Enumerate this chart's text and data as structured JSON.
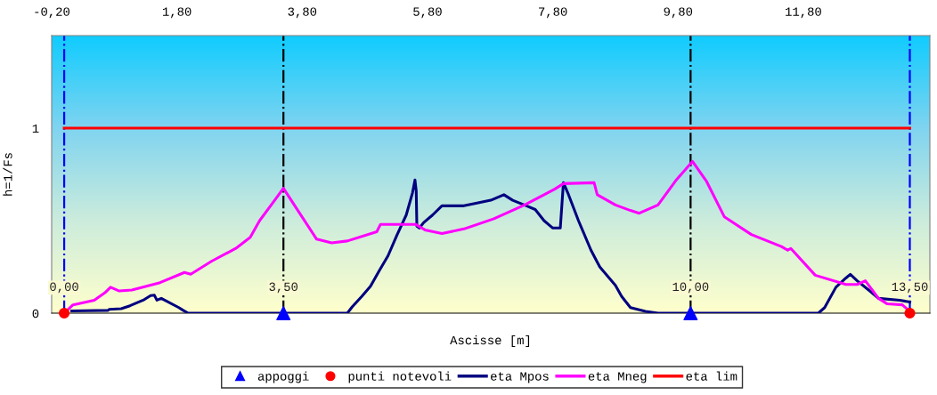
{
  "chart_data": {
    "type": "line",
    "xlabel": "Ascisse [m]",
    "ylabel": "h=1/Fs",
    "xlim": [
      -0.2,
      13.82
    ],
    "ylim": [
      0,
      1.5
    ],
    "xticks": [
      {
        "value": -0.2,
        "label": "-0,20"
      },
      {
        "value": 1.8,
        "label": "1,80"
      },
      {
        "value": 3.8,
        "label": "3,80"
      },
      {
        "value": 5.8,
        "label": "5,80"
      },
      {
        "value": 7.8,
        "label": "7,80"
      },
      {
        "value": 9.8,
        "label": "9,80"
      },
      {
        "value": 11.8,
        "label": "11,80"
      }
    ],
    "yticks": [
      0,
      1
    ],
    "grid": false,
    "legend": "bottom",
    "series": [
      {
        "name": "appoggi",
        "type": "scatter",
        "marker": "triangle",
        "color": "#0000ff",
        "x": [
          3.5,
          10.0
        ],
        "values": [
          0,
          0
        ]
      },
      {
        "name": "punti notevoli",
        "type": "scatter",
        "marker": "circle",
        "color": "#ff0000",
        "x": [
          0,
          13.5
        ],
        "values": [
          0,
          0
        ]
      },
      {
        "name": "eta Mpos",
        "type": "line",
        "marker": "none",
        "color": "#000080",
        "x": [
          0.12,
          0.7,
          0.72,
          0.91,
          1.05,
          1.26,
          1.38,
          1.44,
          1.48,
          1.55,
          1.83,
          1.9,
          1.98,
          4.52,
          4.6,
          4.75,
          4.89,
          5.03,
          5.17,
          5.31,
          5.46,
          5.56,
          5.6,
          5.62,
          5.63,
          5.67,
          5.74,
          5.88,
          6.03,
          6.38,
          6.59,
          6.81,
          7.02,
          7.16,
          7.38,
          7.52,
          7.66,
          7.8,
          7.92,
          7.97,
          8.04,
          8.21,
          8.41,
          8.55,
          8.8,
          8.9,
          9.04,
          9.28,
          9.48,
          12.04,
          12.14,
          12.32,
          12.48,
          12.55,
          12.66,
          12.86,
          13.0,
          13.34,
          13.5
        ],
        "values": [
          0.012,
          0.015,
          0.02,
          0.024,
          0.04,
          0.07,
          0.095,
          0.097,
          0.07,
          0.08,
          0.03,
          0.015,
          0,
          0,
          0.035,
          0.09,
          0.145,
          0.23,
          0.31,
          0.42,
          0.53,
          0.65,
          0.72,
          0.66,
          0.47,
          0.46,
          0.49,
          0.53,
          0.58,
          0.58,
          0.595,
          0.61,
          0.64,
          0.61,
          0.58,
          0.56,
          0.5,
          0.46,
          0.46,
          0.705,
          0.65,
          0.5,
          0.34,
          0.25,
          0.15,
          0.09,
          0.03,
          0.01,
          0,
          0,
          0.03,
          0.14,
          0.19,
          0.21,
          0.175,
          0.12,
          0.08,
          0.07,
          0.06
        ]
      },
      {
        "name": "eta Mneg",
        "type": "line",
        "marker": "none",
        "color": "#ff00ff",
        "x": [
          0,
          0.14,
          0.48,
          0.65,
          0.74,
          0.88,
          1.08,
          1.53,
          1.92,
          2.02,
          2.35,
          2.74,
          2.97,
          3.12,
          3.36,
          3.5,
          3.74,
          4.03,
          4.27,
          4.52,
          4.99,
          5.05,
          5.61,
          5.76,
          6.03,
          6.38,
          6.86,
          7.35,
          7.83,
          7.97,
          8.46,
          8.51,
          8.8,
          9.04,
          9.18,
          9.48,
          9.76,
          10.03,
          10.25,
          10.54,
          10.97,
          11.45,
          11.55,
          11.6,
          11.99,
          12.48,
          12.66,
          12.79,
          13.0,
          13.14,
          13.38,
          13.5
        ],
        "values": [
          0,
          0.045,
          0.07,
          0.11,
          0.14,
          0.12,
          0.125,
          0.165,
          0.22,
          0.21,
          0.28,
          0.35,
          0.41,
          0.5,
          0.61,
          0.675,
          0.55,
          0.4,
          0.38,
          0.39,
          0.44,
          0.48,
          0.48,
          0.45,
          0.43,
          0.455,
          0.51,
          0.585,
          0.67,
          0.7,
          0.705,
          0.64,
          0.585,
          0.555,
          0.54,
          0.585,
          0.715,
          0.82,
          0.715,
          0.52,
          0.425,
          0.36,
          0.34,
          0.35,
          0.205,
          0.155,
          0.155,
          0.175,
          0.08,
          0.05,
          0.045,
          0.01
        ]
      },
      {
        "name": "eta lim",
        "type": "line",
        "marker": "none",
        "color": "#ff0000",
        "x": [
          0,
          13.5
        ],
        "values": [
          1,
          1
        ]
      }
    ],
    "ref_lines": [
      {
        "axis": "x",
        "value": 0,
        "color": "#0000ff",
        "line_style": "dashdot"
      },
      {
        "axis": "x",
        "value": 3.5,
        "color": "#000000",
        "line_style": "dashdot"
      },
      {
        "axis": "x",
        "value": 10,
        "color": "#000000",
        "line_style": "dashdot"
      },
      {
        "axis": "x",
        "value": 13.5,
        "color": "#0000ff",
        "line_style": "dashdot"
      }
    ],
    "annotations": [
      {
        "text": "0,00",
        "x": 0,
        "y": 0
      },
      {
        "text": "3,50",
        "x": 3.5,
        "y": 0
      },
      {
        "text": "10,00",
        "x": 10,
        "y": 0
      },
      {
        "text": "13,50",
        "x": 13.5,
        "y": 0
      }
    ]
  }
}
